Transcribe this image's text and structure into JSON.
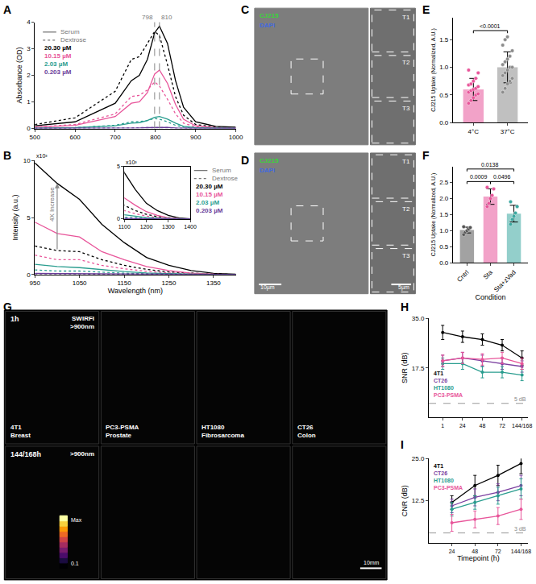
{
  "chart_data": [
    {
      "panel": "A",
      "type": "line",
      "y_label": "Absorbance (OD)",
      "x": [
        500,
        600,
        700,
        740,
        760,
        780,
        798,
        810,
        830,
        850,
        870,
        900,
        950,
        1000
      ],
      "xlim": [
        500,
        1000
      ],
      "xticks": [
        500,
        600,
        700,
        800,
        900,
        1000
      ],
      "ylim": [
        0,
        4
      ],
      "yticks": [
        0,
        1,
        2,
        3,
        4
      ],
      "peaks": [
        798,
        810
      ],
      "series": [
        {
          "name": "Serum",
          "concentration": "20.30 µM",
          "color": "#000000",
          "line_style": "solid",
          "values": [
            0.1,
            0.25,
            0.95,
            1.8,
            2.0,
            2.6,
            3.6,
            3.85,
            3.2,
            1.8,
            0.8,
            0.25,
            0.08,
            0.05
          ]
        },
        {
          "name": "Dextrose",
          "concentration": "20.30 µM",
          "color": "#000000",
          "line_style": "dotted",
          "values": [
            0.15,
            0.4,
            1.4,
            2.6,
            2.7,
            3.2,
            3.65,
            3.5,
            2.4,
            1.2,
            0.5,
            0.15,
            0.05,
            0.03
          ]
        },
        {
          "name": "Serum",
          "concentration": "10.15 µM",
          "color": "#e8559a",
          "line_style": "solid",
          "values": [
            0.05,
            0.12,
            0.45,
            0.95,
            1.0,
            1.35,
            2.05,
            2.2,
            1.7,
            0.9,
            0.35,
            0.1,
            0.03,
            0.02
          ]
        },
        {
          "name": "Dextrose",
          "concentration": "10.15 µM",
          "color": "#e8559a",
          "line_style": "dotted",
          "values": [
            0.05,
            0.15,
            0.55,
            1.2,
            1.25,
            1.45,
            1.75,
            1.6,
            1.1,
            0.55,
            0.2,
            0.06,
            0.02,
            0.01
          ]
        },
        {
          "name": "Serum",
          "concentration": "2.03 µM",
          "color": "#2a9d8f",
          "line_style": "solid",
          "values": [
            0.01,
            0.03,
            0.1,
            0.2,
            0.22,
            0.3,
            0.42,
            0.45,
            0.35,
            0.2,
            0.08,
            0.03,
            0.01,
            0.01
          ]
        },
        {
          "name": "Dextrose",
          "concentration": "2.03 µM",
          "color": "#2a9d8f",
          "line_style": "dotted",
          "values": [
            0.01,
            0.03,
            0.12,
            0.25,
            0.26,
            0.3,
            0.38,
            0.35,
            0.25,
            0.12,
            0.05,
            0.02,
            0.01,
            0
          ]
        },
        {
          "name": "Serum",
          "concentration": "0.203 µM",
          "color": "#6a3d9a",
          "line_style": "solid",
          "values": [
            0,
            0,
            0.01,
            0.02,
            0.02,
            0.03,
            0.04,
            0.05,
            0.04,
            0.02,
            0.01,
            0,
            0,
            0
          ]
        },
        {
          "name": "Dextrose",
          "concentration": "0.203 µM",
          "color": "#6a3d9a",
          "line_style": "dotted",
          "values": [
            0,
            0,
            0.01,
            0.02,
            0.03,
            0.03,
            0.04,
            0.04,
            0.03,
            0.01,
            0.01,
            0,
            0,
            0
          ]
        }
      ]
    },
    {
      "panel": "B",
      "type": "line",
      "x_label": "Wavelength (nm)",
      "y_label": "Intensity (a.u.)",
      "y_multiplier": "x10³",
      "x": [
        950,
        1000,
        1050,
        1100,
        1150,
        1200,
        1250,
        1300,
        1350,
        1400
      ],
      "xlim": [
        950,
        1400
      ],
      "xticks": [
        950,
        1050,
        1150,
        1250,
        1350
      ],
      "ylim": [
        0,
        10
      ],
      "yticks": [
        0,
        5,
        10
      ],
      "annotation": {
        "x": 1000,
        "y": 6.2,
        "text": "4X Increase"
      },
      "inset": {
        "xlim": [
          1100,
          1400
        ],
        "xticks": [
          1100,
          1200,
          1300,
          1400
        ],
        "ylim": [
          0,
          5
        ],
        "yticks": [
          0,
          5
        ],
        "y_multiplier": "x10³"
      },
      "series": [
        {
          "name": "Serum",
          "concentration": "20.30 µM",
          "color": "#000000",
          "line_style": "solid",
          "values": [
            9.8,
            8.0,
            6.6,
            4.4,
            2.8,
            1.5,
            0.8,
            0.35,
            0.1,
            0.02
          ]
        },
        {
          "name": "Dextrose",
          "concentration": "20.30 µM",
          "color": "#000000",
          "line_style": "dotted",
          "values": [
            2.5,
            2.1,
            2.0,
            1.3,
            0.8,
            0.45,
            0.22,
            0.1,
            0.03,
            0.01
          ]
        },
        {
          "name": "Serum",
          "concentration": "10.15 µM",
          "color": "#e8559a",
          "line_style": "solid",
          "values": [
            4.6,
            3.6,
            3.3,
            2.0,
            1.3,
            0.7,
            0.35,
            0.12,
            0.03,
            0.01
          ]
        },
        {
          "name": "Dextrose",
          "concentration": "10.15 µM",
          "color": "#e8559a",
          "line_style": "dotted",
          "values": [
            1.7,
            1.3,
            1.3,
            0.8,
            0.5,
            0.28,
            0.13,
            0.05,
            0.02,
            0.01
          ]
        },
        {
          "name": "Serum",
          "concentration": "2.03 µM",
          "color": "#2a9d8f",
          "line_style": "solid",
          "values": [
            0.9,
            0.7,
            0.6,
            0.4,
            0.25,
            0.14,
            0.07,
            0.03,
            0.01,
            0
          ]
        },
        {
          "name": "Dextrose",
          "concentration": "2.03 µM",
          "color": "#2a9d8f",
          "line_style": "dotted",
          "values": [
            0.4,
            0.3,
            0.3,
            0.18,
            0.11,
            0.06,
            0.03,
            0.01,
            0,
            0
          ]
        },
        {
          "name": "Serum",
          "concentration": "0.203 µM",
          "color": "#6a3d9a",
          "line_style": "solid",
          "values": [
            0.1,
            0.08,
            0.07,
            0.04,
            0.03,
            0.02,
            0.01,
            0,
            0,
            0
          ]
        },
        {
          "name": "Dextrose",
          "concentration": "0.203 µM",
          "color": "#6a3d9a",
          "line_style": "dotted",
          "values": [
            0.05,
            0.04,
            0.04,
            0.02,
            0.01,
            0.01,
            0,
            0,
            0,
            0
          ]
        }
      ]
    },
    {
      "panel": "E",
      "type": "bar",
      "y_label": "CJ215 Uptake (Normalized, A.U.)",
      "categories": [
        "4°C",
        "37°C"
      ],
      "values": [
        0.6,
        1.0
      ],
      "errors": [
        0.2,
        0.28
      ],
      "points": [
        [
          0.35,
          0.4,
          0.45,
          0.5,
          0.52,
          0.55,
          0.58,
          0.6,
          0.62,
          0.65,
          0.68,
          0.7,
          0.75,
          0.8,
          0.9,
          0.95
        ],
        [
          0.55,
          0.62,
          0.7,
          0.75,
          0.8,
          0.85,
          0.9,
          0.95,
          1.0,
          1.0,
          1.05,
          1.1,
          1.15,
          1.2,
          1.3,
          1.4,
          1.5,
          1.55
        ]
      ],
      "colors": [
        "#e8559a",
        "#8c8c8c"
      ],
      "ylim": [
        0,
        1.9
      ],
      "yticks": [
        {
          "value": 0,
          "label": "0.0"
        },
        0.5,
        {
          "value": 1,
          "label": "1.0"
        },
        1.5
      ],
      "comparisons": [
        {
          "between": [
            "4°C",
            "37°C"
          ],
          "label": "<0.0001"
        }
      ]
    },
    {
      "panel": "F",
      "type": "bar",
      "x_label": "Condition",
      "y_label": "CJ215 Uptake (Normalized, A.U.)",
      "categories": [
        "Cntrl",
        "Sta",
        "Sta+zVad"
      ],
      "values": [
        1.02,
        2.06,
        1.53
      ],
      "errors": [
        0.09,
        0.24,
        0.26
      ],
      "points": [
        [
          0.88,
          0.95,
          1.0,
          1.05,
          1.1,
          1.12
        ],
        [
          1.75,
          1.85,
          2.0,
          2.1,
          2.3,
          2.35
        ],
        [
          1.2,
          1.35,
          1.45,
          1.55,
          1.75,
          1.9
        ]
      ],
      "colors": [
        "#555555",
        "#e8559a",
        "#3aa8a0"
      ],
      "ylim": [
        0,
        3.0
      ],
      "yticks": [
        {
          "value": 0,
          "label": "0.0"
        },
        0.5,
        {
          "value": 1,
          "label": "1.0"
        },
        1.5,
        {
          "value": 2,
          "label": "2.0"
        },
        2.5
      ],
      "comparisons": [
        {
          "between": [
            "Cntrl",
            "Sta"
          ],
          "label": "0.0009"
        },
        {
          "between": [
            "Sta",
            "Sta+zVad"
          ],
          "label": "0.0496"
        },
        {
          "between": [
            "Cntrl",
            "Sta+zVad"
          ],
          "label": "0.0138"
        }
      ]
    },
    {
      "panel": "H",
      "type": "line",
      "y_label": "SNR (dB)",
      "categories": [
        "1",
        "24",
        "48",
        "72",
        "144/168"
      ],
      "ylim": [
        0,
        35
      ],
      "yticks": [
        17.5,
        {
          "value": 35,
          "label": "35.0"
        }
      ],
      "reference_line": {
        "value": 5,
        "label": "5 dB"
      },
      "series": [
        {
          "name": "4T1",
          "color": "#000000",
          "values": [
            30,
            28.5,
            27.5,
            25.5,
            21
          ],
          "errors": [
            2.5,
            2,
            2,
            2,
            2.5
          ]
        },
        {
          "name": "CT26",
          "color": "#7b3fa0",
          "values": [
            20,
            21,
            20,
            19,
            18
          ],
          "errors": [
            2,
            2,
            2,
            2,
            2
          ]
        },
        {
          "name": "HT1080",
          "color": "#2a9d8f",
          "values": [
            19,
            19,
            16,
            16,
            15
          ],
          "errors": [
            2,
            2,
            2,
            2,
            2
          ]
        },
        {
          "name": "PC3-PSMA",
          "color": "#e8559a",
          "values": [
            20,
            21,
            20.5,
            21,
            19
          ],
          "errors": [
            2,
            2,
            2,
            2,
            2
          ]
        }
      ]
    },
    {
      "panel": "I",
      "type": "line",
      "x_label": "Timepoint (h)",
      "y_label": "CNR (dB)",
      "categories": [
        "24",
        "48",
        "72",
        "144/168"
      ],
      "ylim": [
        0,
        25
      ],
      "yticks": [
        12.5,
        {
          "value": 25,
          "label": "25.0"
        }
      ],
      "reference_line": {
        "value": 3,
        "label": "3 dB"
      },
      "series": [
        {
          "name": "4T1",
          "color": "#000000",
          "values": [
            12,
            17,
            20,
            23.5
          ],
          "errors": [
            2,
            3,
            3,
            3
          ]
        },
        {
          "name": "CT26",
          "color": "#7b3fa0",
          "values": [
            11,
            13.5,
            15,
            17
          ],
          "errors": [
            2,
            2.5,
            2.5,
            3
          ]
        },
        {
          "name": "HT1080",
          "color": "#2a9d8f",
          "values": [
            10,
            12,
            14,
            16
          ],
          "errors": [
            2,
            2,
            2.5,
            3
          ]
        },
        {
          "name": "PC3-PSMA",
          "color": "#e8559a",
          "values": [
            6,
            7,
            8,
            10
          ],
          "errors": [
            2.5,
            2.5,
            2.5,
            3
          ]
        }
      ]
    }
  ],
  "images": [
    {
      "panel": "C",
      "channels": [
        {
          "name": "CJ215",
          "color": "#39d639"
        },
        {
          "name": "DAPI",
          "color": "#4169e1"
        }
      ],
      "insets": [
        "T1",
        "T2",
        "T3"
      ]
    },
    {
      "panel": "D",
      "channels": [
        {
          "name": "CJ215",
          "color": "#39d639"
        },
        {
          "name": "DAPI",
          "color": "#4169e1"
        }
      ],
      "insets": [
        "T1",
        "T2",
        "T3"
      ],
      "scale_bars": [
        "10µm",
        "5µm"
      ]
    },
    {
      "panel": "G",
      "rows": [
        {
          "time": "1h",
          "channel": "SWIRFI",
          "filter": ">900nm"
        },
        {
          "time": "144/168h",
          "filter": ">900nm"
        }
      ],
      "columns": [
        {
          "line1": "4T1",
          "line2": "Breast"
        },
        {
          "line1": "PC3-PSMA",
          "line2": "Prostate"
        },
        {
          "line1": "HT1080",
          "line2": "Fibrosarcoma"
        },
        {
          "line1": "CT26",
          "line2": "Colon"
        }
      ],
      "colorbar": {
        "max_label": "Max",
        "min": 0.1
      },
      "scale_bar": "10mm"
    }
  ]
}
